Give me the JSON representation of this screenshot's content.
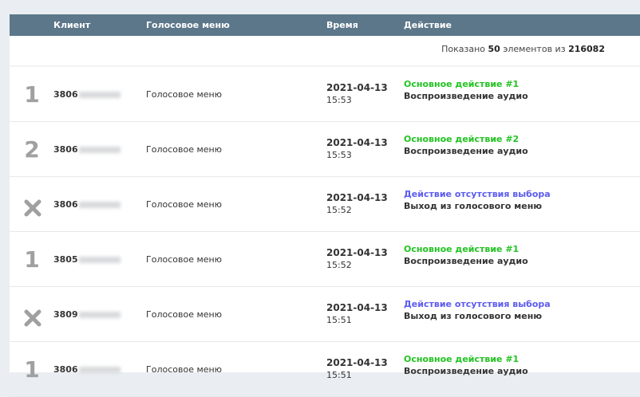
{
  "header": {
    "client": "Клиент",
    "menu": "Голосовое меню",
    "time": "Время",
    "action": "Действие"
  },
  "count": {
    "prefix": "Показано",
    "shown": "50",
    "middle": "элементов из",
    "total": "216082"
  },
  "colors": {
    "primary": "#22c322",
    "no_choice": "#5b5bf0",
    "header": "#5c778a"
  },
  "rows": [
    {
      "marker": "1",
      "icon": "",
      "client": "3806",
      "menu": "Голосовое меню",
      "date": "2021-04-13",
      "time": "15:53",
      "action": "Основное действие #1",
      "action_type": "primary",
      "detail": "Воспроизведение аудио"
    },
    {
      "marker": "2",
      "icon": "",
      "client": "3806",
      "menu": "Голосовое меню",
      "date": "2021-04-13",
      "time": "15:53",
      "action": "Основное действие #2",
      "action_type": "primary",
      "detail": "Воспроизведение аудио"
    },
    {
      "marker": "",
      "icon": "x-icon",
      "client": "3806",
      "menu": "Голосовое меню",
      "date": "2021-04-13",
      "time": "15:52",
      "action": "Действие отсутствия выбора",
      "action_type": "no_choice",
      "detail": "Выход из голосового меню"
    },
    {
      "marker": "1",
      "icon": "",
      "client": "3805",
      "menu": "Голосовое меню",
      "date": "2021-04-13",
      "time": "15:52",
      "action": "Основное действие #1",
      "action_type": "primary",
      "detail": "Воспроизведение аудио"
    },
    {
      "marker": "",
      "icon": "x-icon",
      "client": "3809",
      "menu": "Голосовое меню",
      "date": "2021-04-13",
      "time": "15:51",
      "action": "Действие отсутствия выбора",
      "action_type": "no_choice",
      "detail": "Выход из голосового меню"
    },
    {
      "marker": "1",
      "icon": "",
      "client": "3806",
      "menu": "Голосовое меню",
      "date": "2021-04-13",
      "time": "15:51",
      "action": "Основное действие #1",
      "action_type": "primary",
      "detail": "Воспроизведение аудио"
    }
  ]
}
